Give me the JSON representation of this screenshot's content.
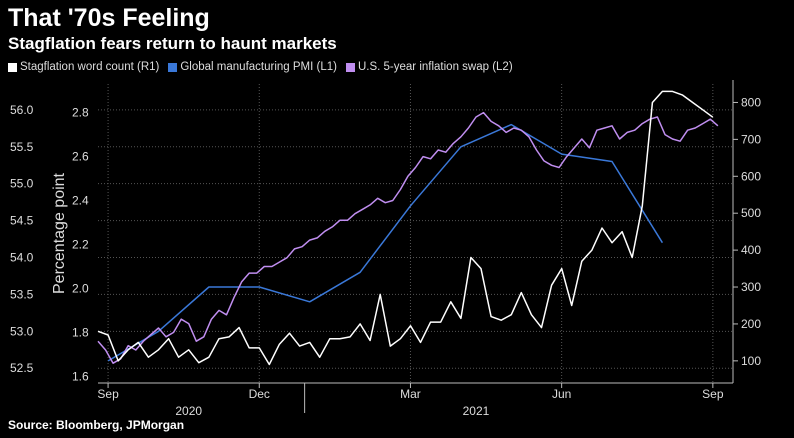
{
  "title": "That '70s Feeling",
  "subtitle": "Stagflation fears return to haunt markets",
  "source": "Source: Bloomberg, JPMorgan",
  "legend": [
    {
      "label": "Stagflation word count (R1)",
      "color": "#ffffff"
    },
    {
      "label": "Global manufacturing PMI (L1)",
      "color": "#3a78d8"
    },
    {
      "label": "U.S. 5-year inflation swap (L2)",
      "color": "#c08ef0"
    }
  ],
  "chart_data": {
    "type": "line",
    "x_ticks": [
      "Sep",
      "Dec",
      "Mar",
      "Jun",
      "Sep"
    ],
    "x_tick_pos": [
      0.2,
      3.2,
      6.2,
      9.2,
      12.2
    ],
    "year_labels": [
      {
        "label": "2020",
        "x": 1.8
      },
      {
        "label": "2021",
        "x": 7.5
      }
    ],
    "year_divider": 4.1,
    "x_range": [
      0,
      12.6
    ],
    "y_label_l2": "Percentage point",
    "axes": {
      "L1": {
        "range": [
          52.3,
          56.35
        ],
        "ticks": [
          52.5,
          53.0,
          53.5,
          54.0,
          54.5,
          55.0,
          55.5,
          56.0
        ],
        "tick_labels": [
          "52.5",
          "53.0",
          "53.5",
          "54.0",
          "54.5",
          "55.0",
          "55.5",
          "56.0"
        ]
      },
      "L2": {
        "range": [
          1.57,
          2.93
        ],
        "ticks": [
          1.6,
          1.8,
          2.0,
          2.2,
          2.4,
          2.6,
          2.8
        ],
        "tick_labels": [
          "1.6",
          "1.8",
          "2.0",
          "2.2",
          "2.4",
          "2.6",
          "2.8"
        ]
      },
      "R1": {
        "range": [
          40,
          850
        ],
        "ticks": [
          100,
          200,
          300,
          400,
          500,
          600,
          700,
          800
        ],
        "tick_labels": [
          "100",
          "200",
          "300",
          "400",
          "500",
          "600",
          "700",
          "800"
        ]
      }
    },
    "series": [
      {
        "name": "Global manufacturing PMI",
        "axis": "L1",
        "color": "#3a78d8",
        "x": [
          0.2,
          1.2,
          2.2,
          3.2,
          4.2,
          5.2,
          6.2,
          7.2,
          8.2,
          9.2,
          10.2,
          11.2
        ],
        "y": [
          52.6,
          53.0,
          53.6,
          53.6,
          53.4,
          53.8,
          54.7,
          55.5,
          55.8,
          55.4,
          55.3,
          54.2
        ]
      },
      {
        "name": "U.S. 5-year inflation swap",
        "axis": "L2",
        "color": "#c08ef0",
        "x": [
          0.0,
          0.15,
          0.3,
          0.45,
          0.6,
          0.75,
          0.9,
          1.05,
          1.2,
          1.35,
          1.5,
          1.65,
          1.8,
          1.95,
          2.1,
          2.25,
          2.4,
          2.55,
          2.7,
          2.85,
          3.0,
          3.15,
          3.3,
          3.45,
          3.6,
          3.75,
          3.9,
          4.05,
          4.2,
          4.35,
          4.5,
          4.65,
          4.8,
          4.95,
          5.1,
          5.25,
          5.4,
          5.55,
          5.7,
          5.85,
          6.0,
          6.15,
          6.3,
          6.45,
          6.6,
          6.75,
          6.9,
          7.05,
          7.2,
          7.35,
          7.5,
          7.65,
          7.8,
          7.95,
          8.1,
          8.25,
          8.4,
          8.55,
          8.7,
          8.85,
          9.0,
          9.15,
          9.3,
          9.45,
          9.6,
          9.75,
          9.9,
          10.05,
          10.2,
          10.35,
          10.5,
          10.65,
          10.8,
          10.95,
          11.1,
          11.25,
          11.4,
          11.55,
          11.7,
          11.85,
          12.0,
          12.15,
          12.3
        ],
        "y": [
          1.76,
          1.72,
          1.66,
          1.68,
          1.74,
          1.72,
          1.76,
          1.79,
          1.82,
          1.78,
          1.8,
          1.86,
          1.84,
          1.76,
          1.78,
          1.86,
          1.9,
          1.88,
          1.96,
          2.03,
          2.07,
          2.07,
          2.1,
          2.1,
          2.12,
          2.14,
          2.18,
          2.19,
          2.22,
          2.23,
          2.26,
          2.28,
          2.31,
          2.31,
          2.34,
          2.36,
          2.38,
          2.41,
          2.39,
          2.4,
          2.45,
          2.51,
          2.55,
          2.6,
          2.59,
          2.63,
          2.62,
          2.66,
          2.69,
          2.73,
          2.78,
          2.8,
          2.76,
          2.74,
          2.71,
          2.73,
          2.72,
          2.69,
          2.63,
          2.58,
          2.56,
          2.55,
          2.6,
          2.64,
          2.68,
          2.64,
          2.72,
          2.73,
          2.74,
          2.68,
          2.71,
          2.72,
          2.75,
          2.77,
          2.78,
          2.7,
          2.68,
          2.67,
          2.72,
          2.73,
          2.75,
          2.77,
          2.74
        ]
      },
      {
        "name": "Stagflation word count",
        "axis": "R1",
        "color": "#ffffff",
        "x": [
          0.0,
          0.2,
          0.4,
          0.6,
          0.8,
          1.0,
          1.2,
          1.4,
          1.6,
          1.8,
          2.0,
          2.2,
          2.4,
          2.6,
          2.8,
          3.0,
          3.2,
          3.4,
          3.6,
          3.8,
          4.0,
          4.2,
          4.4,
          4.6,
          4.8,
          5.0,
          5.2,
          5.4,
          5.6,
          5.8,
          6.0,
          6.2,
          6.4,
          6.6,
          6.8,
          7.0,
          7.2,
          7.4,
          7.6,
          7.8,
          8.0,
          8.2,
          8.4,
          8.6,
          8.8,
          9.0,
          9.2,
          9.4,
          9.6,
          9.8,
          10.0,
          10.2,
          10.4,
          10.6,
          10.8,
          11.0,
          11.2,
          11.4,
          11.6,
          11.8,
          12.0,
          12.2
        ],
        "y": [
          180,
          170,
          100,
          130,
          150,
          110,
          130,
          160,
          110,
          130,
          95,
          110,
          160,
          165,
          190,
          135,
          135,
          90,
          145,
          175,
          140,
          150,
          110,
          160,
          160,
          165,
          200,
          155,
          280,
          140,
          160,
          195,
          150,
          205,
          205,
          260,
          215,
          380,
          350,
          220,
          210,
          225,
          285,
          225,
          190,
          305,
          350,
          250,
          370,
          400,
          460,
          420,
          450,
          380,
          520,
          800,
          830,
          830,
          820,
          800,
          780,
          760
        ]
      }
    ]
  }
}
